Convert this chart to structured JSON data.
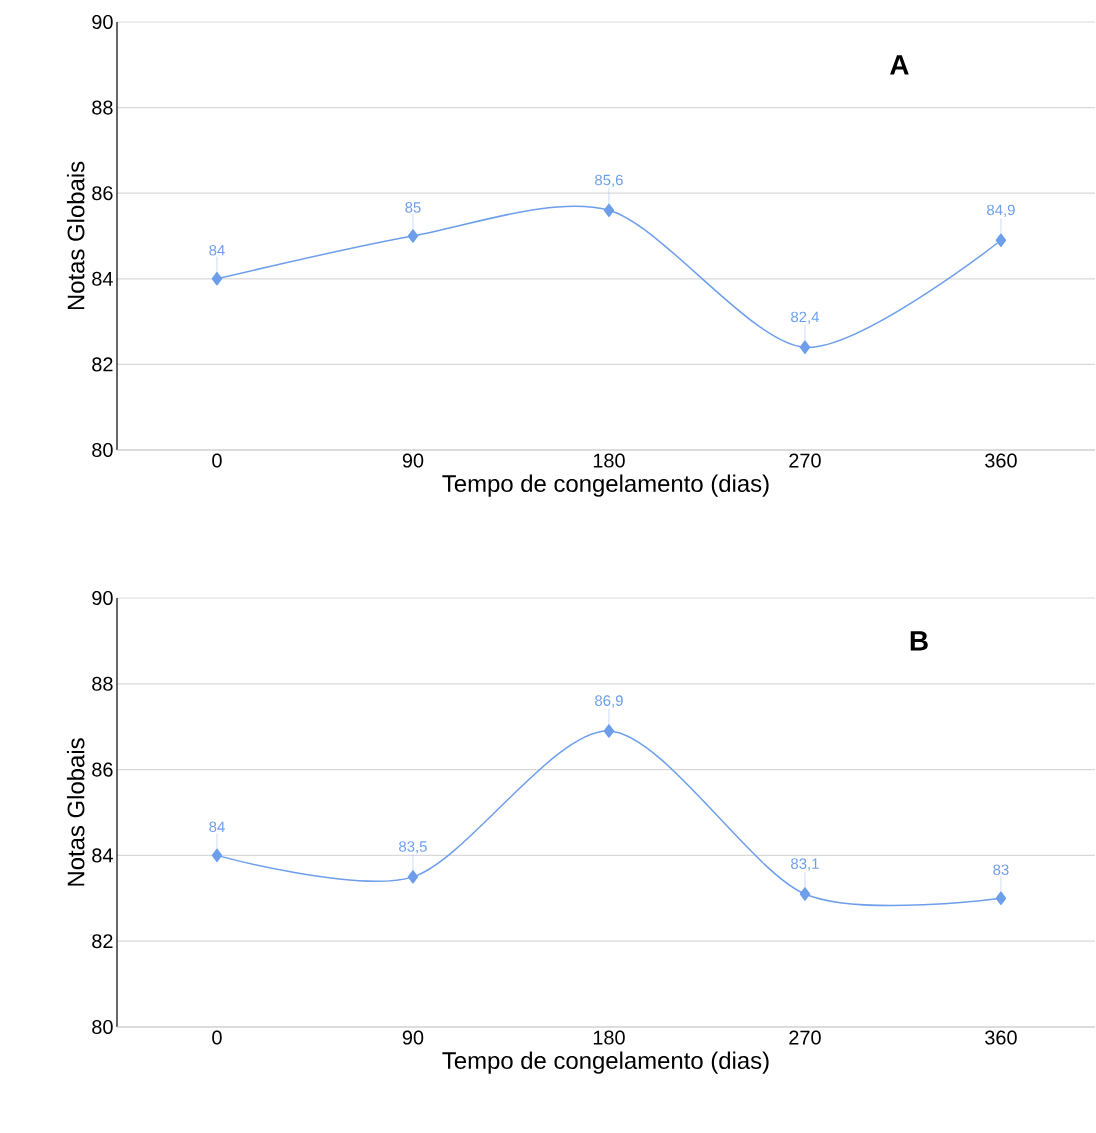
{
  "chart_data": [
    {
      "type": "line",
      "xlabel": "Tempo de congelamento (dias)",
      "ylabel": "Notas Globais",
      "categories": [
        "0",
        "90",
        "180",
        "270",
        "360"
      ],
      "values": [
        84,
        85,
        85.6,
        82.4,
        84.9
      ],
      "value_labels": [
        "84",
        "85",
        "85,6",
        "82,4",
        "84,9"
      ],
      "color": "#6d9eeb",
      "marker": "diamond",
      "ylim": [
        80,
        90
      ],
      "yticks": [
        80,
        82,
        84,
        86,
        88,
        90
      ],
      "grid": "y",
      "annotations": [
        "A"
      ]
    },
    {
      "type": "line",
      "xlabel": "Tempo de congelamento (dias)",
      "ylabel": "Notas Globais",
      "categories": [
        "0",
        "90",
        "180",
        "270",
        "360"
      ],
      "values": [
        84,
        83.5,
        86.9,
        83.1,
        83
      ],
      "value_labels": [
        "84",
        "83,5",
        "86,9",
        "83,1",
        "83"
      ],
      "color": "#6d9eeb",
      "marker": "diamond",
      "ylim": [
        80,
        90
      ],
      "yticks": [
        80,
        82,
        84,
        86,
        88,
        90
      ],
      "grid": "y",
      "annotations": [
        "B"
      ]
    }
  ]
}
